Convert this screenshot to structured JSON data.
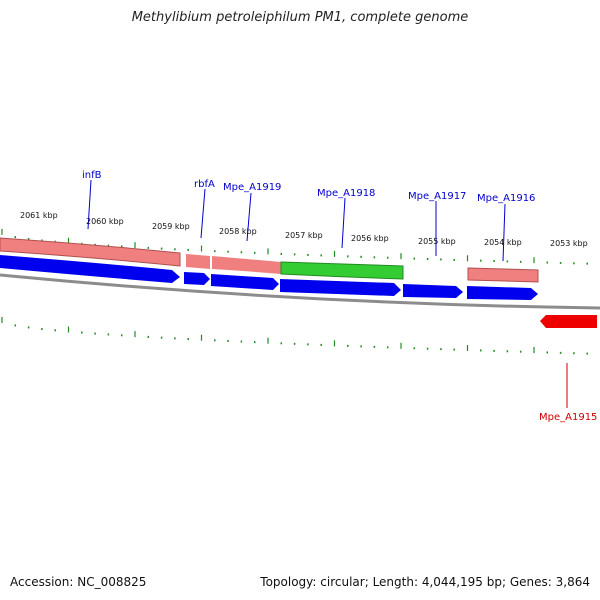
{
  "title": "Methylibium petroleiphilum PM1, complete genome",
  "footer": {
    "accession_prefix": "Accession:",
    "accession": "NC_008825",
    "topology_label": "Topology:",
    "topology": "circular",
    "length_label": "Length:",
    "length": "4,044,195 bp",
    "genes_label": "Genes:",
    "genes": "3,864"
  },
  "colors": {
    "forward_gene": "#f08080",
    "reverse_gene": "#0000ee",
    "other_gene": "#33cc33",
    "rrna_gene": "#ee0000",
    "backbone": "#909090",
    "ticks": "#228b22",
    "gene_label": "#0000cc",
    "red_label": "#cc0000"
  },
  "scale": {
    "unit": "kbp",
    "ticks": [
      "2061 kbp",
      "2060 kbp",
      "2059 kbp",
      "2058 kbp",
      "2057 kbp",
      "2056 kbp",
      "2055 kbp",
      "2054 kbp",
      "2053 kbp"
    ]
  },
  "gene_labels": [
    {
      "text": "infB",
      "color": "blue"
    },
    {
      "text": "rbfA",
      "color": "blue"
    },
    {
      "text": "Mpe_A1919",
      "color": "blue"
    },
    {
      "text": "Mpe_A1918",
      "color": "blue"
    },
    {
      "text": "Mpe_A1917",
      "color": "blue"
    },
    {
      "text": "Mpe_A1916",
      "color": "blue"
    },
    {
      "text": "Mpe_A1915",
      "color": "red"
    }
  ]
}
